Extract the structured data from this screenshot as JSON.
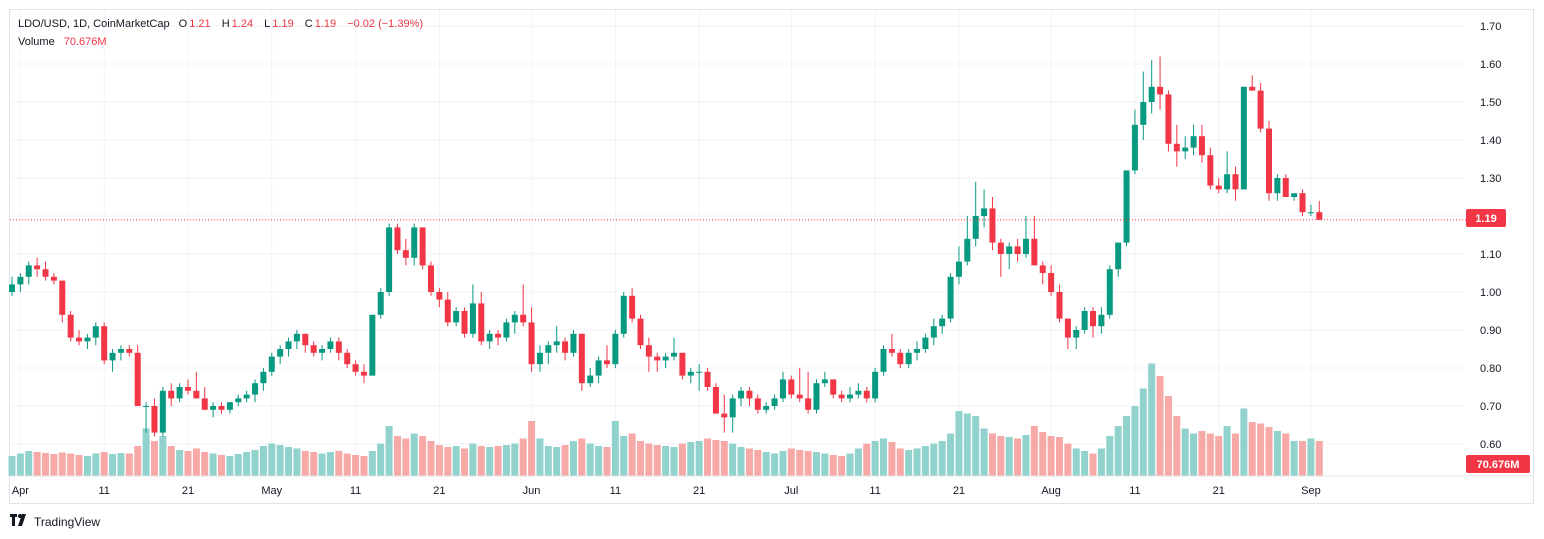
{
  "legend": {
    "symbol": "LDO/USD, 1D, CoinMarketCap",
    "o_label": "O",
    "o_value": "1.21",
    "h_label": "H",
    "h_value": "1.24",
    "l_label": "L",
    "l_value": "1.19",
    "c_label": "C",
    "c_value": "1.19",
    "change": "−0.02 (−1.39%)",
    "volume_label": "Volume",
    "volume_value": "70.676M"
  },
  "footer": {
    "brand": "TradingView",
    "logo_icon": "tradingview-logo-icon"
  },
  "colors": {
    "up": "#089981",
    "down": "#f23645",
    "up_vol": "#92d2cc",
    "down_vol": "#f7a9a7",
    "grid": "#f0f3fa",
    "axis_text": "#131722"
  },
  "chart_data": {
    "type": "candlestick",
    "title": "LDO/USD, 1D, CoinMarketCap",
    "price_axis_ticks": [
      "1.70",
      "1.60",
      "1.50",
      "1.40",
      "1.30",
      "1.20",
      "1.10",
      "1.00",
      "0.90",
      "0.80",
      "0.70",
      "0.60"
    ],
    "price_axis_values": [
      1.7,
      1.6,
      1.5,
      1.4,
      1.3,
      1.2,
      1.1,
      1.0,
      0.9,
      0.8,
      0.7,
      0.6
    ],
    "ylim": [
      0.565,
      1.735
    ],
    "time_axis_labels": [
      "Apr",
      "11",
      "21",
      "May",
      "11",
      "21",
      "Jun",
      "11",
      "21",
      "Jul",
      "11",
      "21",
      "Aug",
      "11",
      "21",
      "Sep"
    ],
    "time_axis_bar_index": [
      1,
      11,
      21,
      31,
      41,
      51,
      62,
      72,
      82,
      93,
      103,
      113,
      124,
      134,
      144,
      155
    ],
    "last_price_label": "1.19",
    "last_price": 1.19,
    "last_volume_label": "70.676M",
    "grid": true,
    "ohlc": [
      [
        1.0,
        1.04,
        0.99,
        1.02
      ],
      [
        1.02,
        1.05,
        1.0,
        1.04
      ],
      [
        1.04,
        1.08,
        1.02,
        1.07
      ],
      [
        1.07,
        1.09,
        1.04,
        1.06
      ],
      [
        1.06,
        1.08,
        1.03,
        1.04
      ],
      [
        1.04,
        1.05,
        1.02,
        1.03
      ],
      [
        1.03,
        1.03,
        0.92,
        0.94
      ],
      [
        0.94,
        0.95,
        0.87,
        0.88
      ],
      [
        0.88,
        0.9,
        0.86,
        0.87
      ],
      [
        0.87,
        0.89,
        0.85,
        0.88
      ],
      [
        0.88,
        0.92,
        0.86,
        0.91
      ],
      [
        0.91,
        0.92,
        0.81,
        0.82
      ],
      [
        0.82,
        0.85,
        0.79,
        0.84
      ],
      [
        0.84,
        0.86,
        0.82,
        0.85
      ],
      [
        0.85,
        0.86,
        0.83,
        0.84
      ],
      [
        0.84,
        0.86,
        0.7,
        0.7
      ],
      [
        0.7,
        0.71,
        0.63,
        0.7
      ],
      [
        0.7,
        0.72,
        0.62,
        0.63
      ],
      [
        0.63,
        0.75,
        0.62,
        0.74
      ],
      [
        0.74,
        0.76,
        0.7,
        0.72
      ],
      [
        0.72,
        0.76,
        0.71,
        0.75
      ],
      [
        0.75,
        0.77,
        0.73,
        0.74
      ],
      [
        0.74,
        0.79,
        0.72,
        0.72
      ],
      [
        0.72,
        0.75,
        0.69,
        0.69
      ],
      [
        0.69,
        0.71,
        0.67,
        0.7
      ],
      [
        0.7,
        0.71,
        0.68,
        0.69
      ],
      [
        0.69,
        0.71,
        0.68,
        0.71
      ],
      [
        0.71,
        0.73,
        0.7,
        0.72
      ],
      [
        0.72,
        0.74,
        0.71,
        0.73
      ],
      [
        0.73,
        0.77,
        0.71,
        0.76
      ],
      [
        0.76,
        0.8,
        0.74,
        0.79
      ],
      [
        0.79,
        0.84,
        0.78,
        0.83
      ],
      [
        0.83,
        0.86,
        0.81,
        0.85
      ],
      [
        0.85,
        0.88,
        0.83,
        0.87
      ],
      [
        0.87,
        0.9,
        0.85,
        0.89
      ],
      [
        0.89,
        0.89,
        0.84,
        0.86
      ],
      [
        0.86,
        0.87,
        0.83,
        0.84
      ],
      [
        0.84,
        0.86,
        0.82,
        0.85
      ],
      [
        0.85,
        0.88,
        0.84,
        0.87
      ],
      [
        0.87,
        0.88,
        0.82,
        0.84
      ],
      [
        0.84,
        0.85,
        0.8,
        0.81
      ],
      [
        0.81,
        0.82,
        0.78,
        0.79
      ],
      [
        0.79,
        0.81,
        0.76,
        0.78
      ],
      [
        0.78,
        0.94,
        0.78,
        0.94
      ],
      [
        0.94,
        1.01,
        0.93,
        1.0
      ],
      [
        1.0,
        1.18,
        0.99,
        1.17
      ],
      [
        1.17,
        1.18,
        1.1,
        1.11
      ],
      [
        1.11,
        1.14,
        1.07,
        1.09
      ],
      [
        1.09,
        1.18,
        1.07,
        1.17
      ],
      [
        1.17,
        1.17,
        1.06,
        1.07
      ],
      [
        1.07,
        1.08,
        0.99,
        1.0
      ],
      [
        1.0,
        1.01,
        0.96,
        0.98
      ],
      [
        0.98,
        1.0,
        0.91,
        0.92
      ],
      [
        0.92,
        0.96,
        0.91,
        0.95
      ],
      [
        0.95,
        0.96,
        0.88,
        0.89
      ],
      [
        0.89,
        1.02,
        0.88,
        0.97
      ],
      [
        0.97,
        1.0,
        0.86,
        0.87
      ],
      [
        0.87,
        0.9,
        0.85,
        0.89
      ],
      [
        0.89,
        0.9,
        0.86,
        0.88
      ],
      [
        0.88,
        0.93,
        0.87,
        0.92
      ],
      [
        0.92,
        0.95,
        0.89,
        0.94
      ],
      [
        0.94,
        1.02,
        0.91,
        0.92
      ],
      [
        0.92,
        0.96,
        0.79,
        0.81
      ],
      [
        0.81,
        0.86,
        0.79,
        0.84
      ],
      [
        0.84,
        0.87,
        0.81,
        0.86
      ],
      [
        0.86,
        0.91,
        0.84,
        0.87
      ],
      [
        0.87,
        0.88,
        0.82,
        0.84
      ],
      [
        0.84,
        0.9,
        0.83,
        0.89
      ],
      [
        0.89,
        0.89,
        0.74,
        0.76
      ],
      [
        0.76,
        0.8,
        0.75,
        0.78
      ],
      [
        0.78,
        0.83,
        0.76,
        0.82
      ],
      [
        0.82,
        0.86,
        0.8,
        0.81
      ],
      [
        0.81,
        0.9,
        0.8,
        0.89
      ],
      [
        0.89,
        1.0,
        0.88,
        0.99
      ],
      [
        0.99,
        1.01,
        0.92,
        0.93
      ],
      [
        0.93,
        0.94,
        0.85,
        0.86
      ],
      [
        0.86,
        0.88,
        0.79,
        0.83
      ],
      [
        0.83,
        0.84,
        0.79,
        0.82
      ],
      [
        0.82,
        0.84,
        0.8,
        0.83
      ],
      [
        0.83,
        0.88,
        0.82,
        0.84
      ],
      [
        0.84,
        0.84,
        0.77,
        0.78
      ],
      [
        0.78,
        0.8,
        0.76,
        0.79
      ],
      [
        0.79,
        0.81,
        0.74,
        0.79
      ],
      [
        0.79,
        0.8,
        0.74,
        0.75
      ],
      [
        0.75,
        0.76,
        0.68,
        0.68
      ],
      [
        0.68,
        0.73,
        0.63,
        0.67
      ],
      [
        0.67,
        0.73,
        0.63,
        0.72
      ],
      [
        0.72,
        0.75,
        0.7,
        0.74
      ],
      [
        0.74,
        0.75,
        0.7,
        0.72
      ],
      [
        0.72,
        0.73,
        0.68,
        0.69
      ],
      [
        0.69,
        0.71,
        0.68,
        0.7
      ],
      [
        0.7,
        0.73,
        0.69,
        0.72
      ],
      [
        0.72,
        0.79,
        0.71,
        0.77
      ],
      [
        0.77,
        0.78,
        0.72,
        0.73
      ],
      [
        0.73,
        0.8,
        0.71,
        0.72
      ],
      [
        0.72,
        0.79,
        0.68,
        0.69
      ],
      [
        0.69,
        0.77,
        0.68,
        0.76
      ],
      [
        0.76,
        0.79,
        0.75,
        0.77
      ],
      [
        0.77,
        0.77,
        0.72,
        0.73
      ],
      [
        0.73,
        0.74,
        0.71,
        0.72
      ],
      [
        0.72,
        0.75,
        0.71,
        0.73
      ],
      [
        0.73,
        0.76,
        0.72,
        0.74
      ],
      [
        0.74,
        0.75,
        0.71,
        0.72
      ],
      [
        0.72,
        0.8,
        0.71,
        0.79
      ],
      [
        0.79,
        0.86,
        0.78,
        0.85
      ],
      [
        0.85,
        0.89,
        0.83,
        0.84
      ],
      [
        0.84,
        0.85,
        0.8,
        0.81
      ],
      [
        0.81,
        0.85,
        0.8,
        0.84
      ],
      [
        0.84,
        0.87,
        0.82,
        0.85
      ],
      [
        0.85,
        0.89,
        0.84,
        0.88
      ],
      [
        0.88,
        0.93,
        0.86,
        0.91
      ],
      [
        0.91,
        0.94,
        0.89,
        0.93
      ],
      [
        0.93,
        1.05,
        0.92,
        1.04
      ],
      [
        1.04,
        1.12,
        1.02,
        1.08
      ],
      [
        1.08,
        1.2,
        1.07,
        1.14
      ],
      [
        1.14,
        1.29,
        1.12,
        1.2
      ],
      [
        1.2,
        1.27,
        1.17,
        1.22
      ],
      [
        1.22,
        1.25,
        1.11,
        1.13
      ],
      [
        1.13,
        1.14,
        1.04,
        1.1
      ],
      [
        1.1,
        1.13,
        1.06,
        1.12
      ],
      [
        1.12,
        1.14,
        1.08,
        1.1
      ],
      [
        1.1,
        1.2,
        1.09,
        1.14
      ],
      [
        1.14,
        1.2,
        1.07,
        1.07
      ],
      [
        1.07,
        1.08,
        1.02,
        1.05
      ],
      [
        1.05,
        1.07,
        0.99,
        1.0
      ],
      [
        1.0,
        1.02,
        0.92,
        0.93
      ],
      [
        0.93,
        0.93,
        0.85,
        0.88
      ],
      [
        0.88,
        0.91,
        0.85,
        0.9
      ],
      [
        0.9,
        0.96,
        0.89,
        0.95
      ],
      [
        0.95,
        0.96,
        0.88,
        0.91
      ],
      [
        0.91,
        0.96,
        0.89,
        0.94
      ],
      [
        0.94,
        1.07,
        0.93,
        1.06
      ],
      [
        1.06,
        1.13,
        1.04,
        1.13
      ],
      [
        1.13,
        1.32,
        1.12,
        1.32
      ],
      [
        1.32,
        1.48,
        1.31,
        1.44
      ],
      [
        1.44,
        1.58,
        1.4,
        1.5
      ],
      [
        1.5,
        1.61,
        1.47,
        1.54
      ],
      [
        1.54,
        1.62,
        1.48,
        1.52
      ],
      [
        1.52,
        1.53,
        1.37,
        1.39
      ],
      [
        1.39,
        1.44,
        1.33,
        1.37
      ],
      [
        1.37,
        1.41,
        1.35,
        1.38
      ],
      [
        1.38,
        1.44,
        1.36,
        1.41
      ],
      [
        1.41,
        1.44,
        1.34,
        1.36
      ],
      [
        1.36,
        1.38,
        1.27,
        1.28
      ],
      [
        1.28,
        1.3,
        1.26,
        1.27
      ],
      [
        1.27,
        1.37,
        1.26,
        1.31
      ],
      [
        1.31,
        1.33,
        1.24,
        1.27
      ],
      [
        1.27,
        1.54,
        1.27,
        1.54
      ],
      [
        1.54,
        1.57,
        1.53,
        1.53
      ],
      [
        1.53,
        1.55,
        1.42,
        1.43
      ],
      [
        1.43,
        1.45,
        1.24,
        1.26
      ],
      [
        1.26,
        1.31,
        1.24,
        1.3
      ],
      [
        1.3,
        1.31,
        1.25,
        1.25
      ],
      [
        1.25,
        1.26,
        1.24,
        1.26
      ],
      [
        1.26,
        1.27,
        1.2,
        1.21
      ],
      [
        1.21,
        1.23,
        1.2,
        1.21
      ],
      [
        1.21,
        1.24,
        1.19,
        1.19
      ]
    ],
    "volume_millions": [
      40,
      45,
      50,
      48,
      46,
      44,
      47,
      45,
      42,
      40,
      45,
      48,
      44,
      46,
      45,
      60,
      95,
      70,
      80,
      60,
      52,
      50,
      55,
      48,
      45,
      42,
      40,
      44,
      48,
      52,
      60,
      65,
      62,
      58,
      55,
      50,
      48,
      45,
      48,
      50,
      45,
      42,
      40,
      50,
      65,
      100,
      80,
      75,
      85,
      80,
      70,
      62,
      58,
      60,
      55,
      65,
      60,
      58,
      60,
      62,
      65,
      75,
      110,
      75,
      60,
      58,
      62,
      70,
      75,
      65,
      60,
      58,
      110,
      80,
      85,
      70,
      65,
      62,
      60,
      58,
      65,
      68,
      70,
      75,
      72,
      70,
      65,
      58,
      55,
      52,
      48,
      45,
      50,
      55,
      52,
      50,
      48,
      45,
      42,
      40,
      45,
      55,
      65,
      70,
      75,
      68,
      55,
      52,
      55,
      60,
      65,
      70,
      85,
      130,
      125,
      120,
      95,
      85,
      80,
      78,
      75,
      82,
      100,
      88,
      80,
      78,
      65,
      55,
      50,
      45,
      55,
      80,
      100,
      120,
      140,
      175,
      225,
      200,
      160,
      120,
      95,
      85,
      90,
      85,
      80,
      100,
      85,
      135,
      108,
      105,
      98,
      90,
      85,
      70,
      70,
      75,
      70
    ],
    "volume_ylim": [
      0,
      500
    ]
  }
}
